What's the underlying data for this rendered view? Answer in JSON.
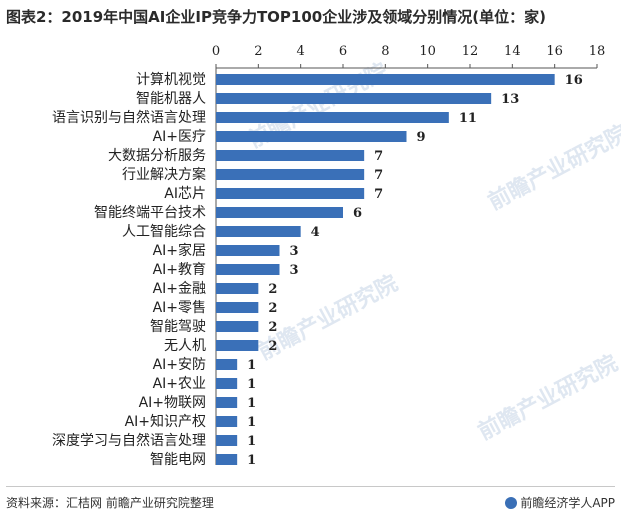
{
  "title": "图表2：2019年中国AI企业IP竞争力TOP100企业涉及领域分别情况(单位：家)",
  "footer": {
    "source": "资料来源：汇桔网 前瞻产业研究院整理",
    "brand": "前瞻经济学人APP"
  },
  "watermark": "前瞻产业研究院",
  "colors": {
    "bar": "#3a70b8",
    "text": "#222222",
    "axis": "#555555"
  },
  "chart_data": {
    "type": "bar",
    "orientation": "horizontal",
    "title": "图表2：2019年中国AI企业IP竞争力TOP100企业涉及领域分别情况(单位：家)",
    "xlim": [
      0,
      18
    ],
    "xticks": [
      0,
      2,
      4,
      6,
      8,
      10,
      12,
      14,
      16,
      18
    ],
    "xaxis_position": "top",
    "grid": false,
    "categories": [
      "计算机视觉",
      "智能机器人",
      "语言识别与自然语言处理",
      "AI+医疗",
      "大数据分析服务",
      "行业解决方案",
      "AI芯片",
      "智能终端平台技术",
      "人工智能综合",
      "AI+家居",
      "AI+教育",
      "AI+金融",
      "AI+零售",
      "智能驾驶",
      "无人机",
      "AI+安防",
      "AI+农业",
      "AI+物联网",
      "AI+知识产权",
      "深度学习与自然语言处理",
      "智能电网"
    ],
    "values": [
      16,
      13,
      11,
      9,
      7,
      7,
      7,
      6,
      4,
      3,
      3,
      2,
      2,
      2,
      2,
      1,
      1,
      1,
      1,
      1,
      1
    ]
  }
}
